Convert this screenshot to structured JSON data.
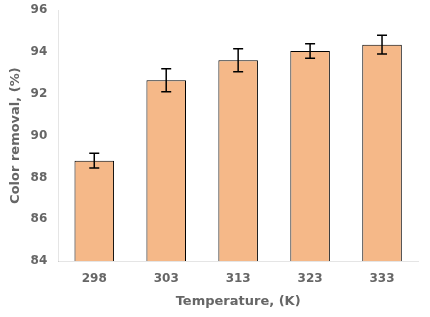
{
  "chart_data": {
    "type": "bar",
    "categories": [
      "298",
      "303",
      "313",
      "323",
      "333"
    ],
    "values": [
      88.8,
      92.65,
      93.6,
      94.05,
      94.35
    ],
    "errors": [
      0.35,
      0.55,
      0.55,
      0.35,
      0.45
    ],
    "color": "#F5B888",
    "xlabel": "Temperature, (K)",
    "ylabel": "Color removal, (%)",
    "ylim": [
      84,
      96
    ],
    "yticks": [
      84,
      86,
      88,
      90,
      92,
      94,
      96
    ],
    "grid": false
  }
}
